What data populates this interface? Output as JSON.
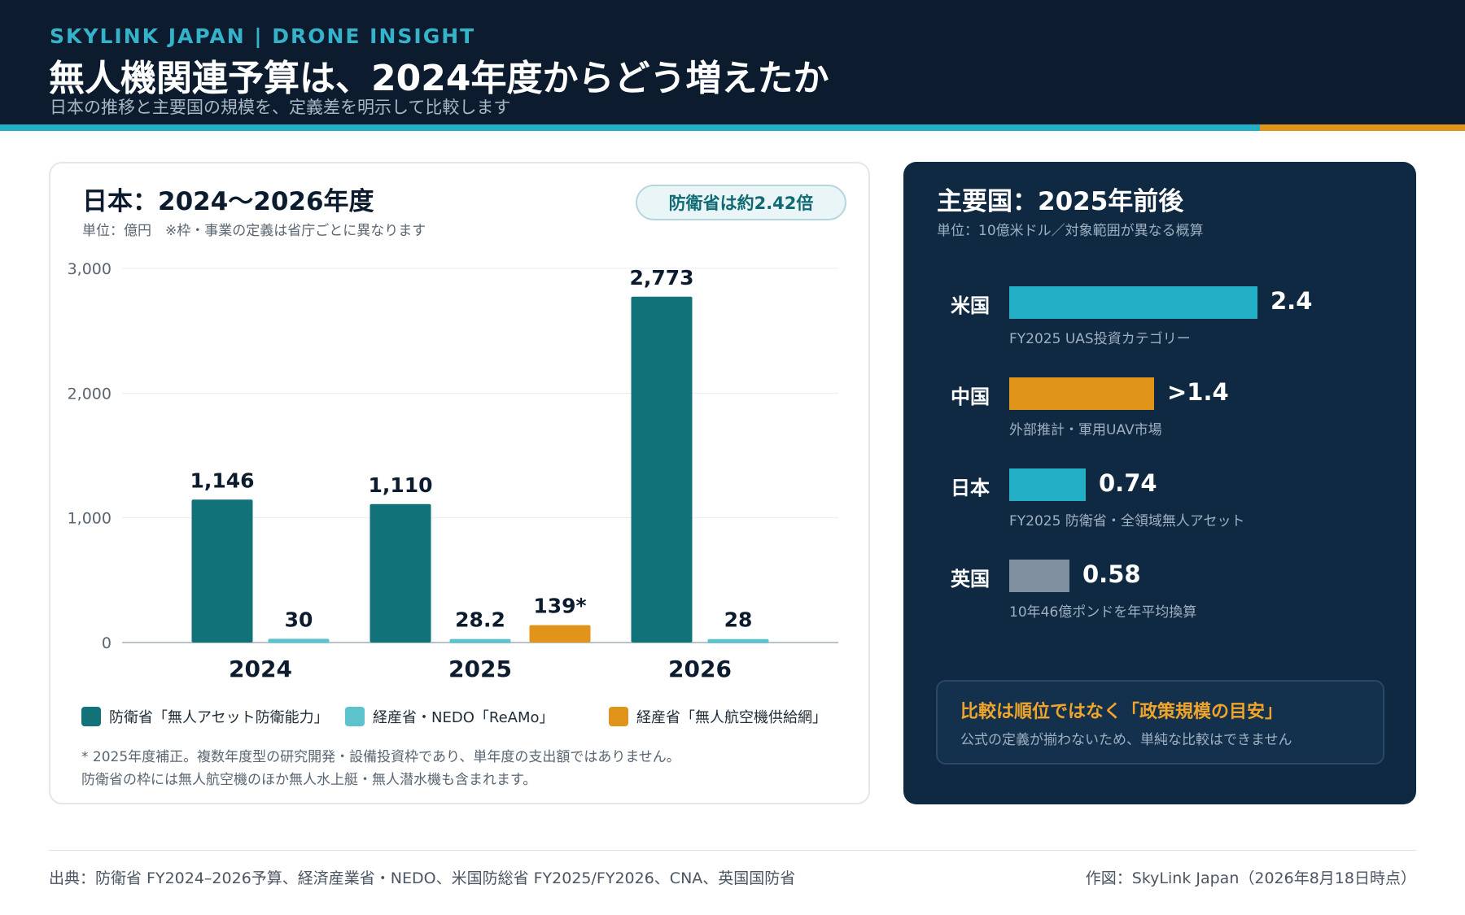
{
  "header": {
    "brand": "SKYLINK JAPAN | DRONE INSIGHT",
    "title": "無人機関連予算は、2024年度からどう増えたか",
    "subtitle": "日本の推移と主要国の規模を、定義差を明示して比較します"
  },
  "left_card": {
    "title": "日本：2024〜2026年度",
    "unit": "単位：億円　※枠・事業の定義は省庁ごとに異なります",
    "badge": "防衛省は約2.42倍",
    "footnotes": [
      "* 2025年度補正。複数年度型の研究開発・設備投資枠であり、単年度の支出額ではありません。",
      "防衛省の枠には無人航空機のほか無人水上艇・無人潜水機も含まれます。"
    ]
  },
  "chart_data": [
    {
      "type": "bar",
      "title": "日本：2024〜2026年度",
      "unit": "億円",
      "categories": [
        "2024",
        "2025",
        "2026"
      ],
      "ylim": [
        0,
        3000
      ],
      "yticks": [
        0,
        1000,
        2000,
        3000
      ],
      "ytick_labels": [
        "0",
        "1,000",
        "2,000",
        "3,000"
      ],
      "grid": true,
      "legend_position": "bottom",
      "series": [
        {
          "name": "防衛省「無人アセット防衛能力」",
          "color": "#11727a",
          "values": [
            1146,
            1110,
            2773
          ],
          "labels": [
            "1,146",
            "1,110",
            "2,773"
          ]
        },
        {
          "name": "経産省・NEDO「ReAMo」",
          "color": "#5cc3cc",
          "values": [
            30,
            28.2,
            28
          ],
          "labels": [
            "30",
            "28.2",
            "28"
          ]
        },
        {
          "name": "経産省「無人航空機供給網」",
          "color": "#e0951a",
          "values": [
            null,
            139,
            null
          ],
          "labels": [
            "",
            "139*",
            ""
          ]
        }
      ]
    },
    {
      "type": "bar",
      "orientation": "horizontal",
      "title": "主要国：2025年前後",
      "unit": "10億米ドル",
      "categories": [
        "米国",
        "中国",
        "日本",
        "英国"
      ],
      "values": [
        2.4,
        1.4,
        0.74,
        0.58
      ],
      "value_labels": [
        "2.4",
        ">1.4",
        "0.74",
        "0.58"
      ],
      "colors": [
        "#22aec5",
        "#e0951a",
        "#22aec5",
        "#7f8fa0"
      ],
      "notes": [
        "FY2025 UAS投資カテゴリー",
        "外部推計・軍用UAV市場",
        "FY2025 防衛省・全領域無人アセット",
        "10年46億ポンドを年平均換算"
      ]
    }
  ],
  "right_card": {
    "title": "主要国：2025年前後",
    "unit": "単位：10億米ドル／対象範囲が異なる概算",
    "note_title": "比較は順位ではなく「政策規模の目安」",
    "note_text": "公式の定義が揃わないため、単純な比較はできません"
  },
  "footer": {
    "source": "出典：防衛省 FY2024–2026予算、経済産業省・NEDO、米国防総省 FY2025/FY2026、CNA、英国国防省",
    "credit": "作図：SkyLink Japan（2026年8月18日時点）"
  }
}
